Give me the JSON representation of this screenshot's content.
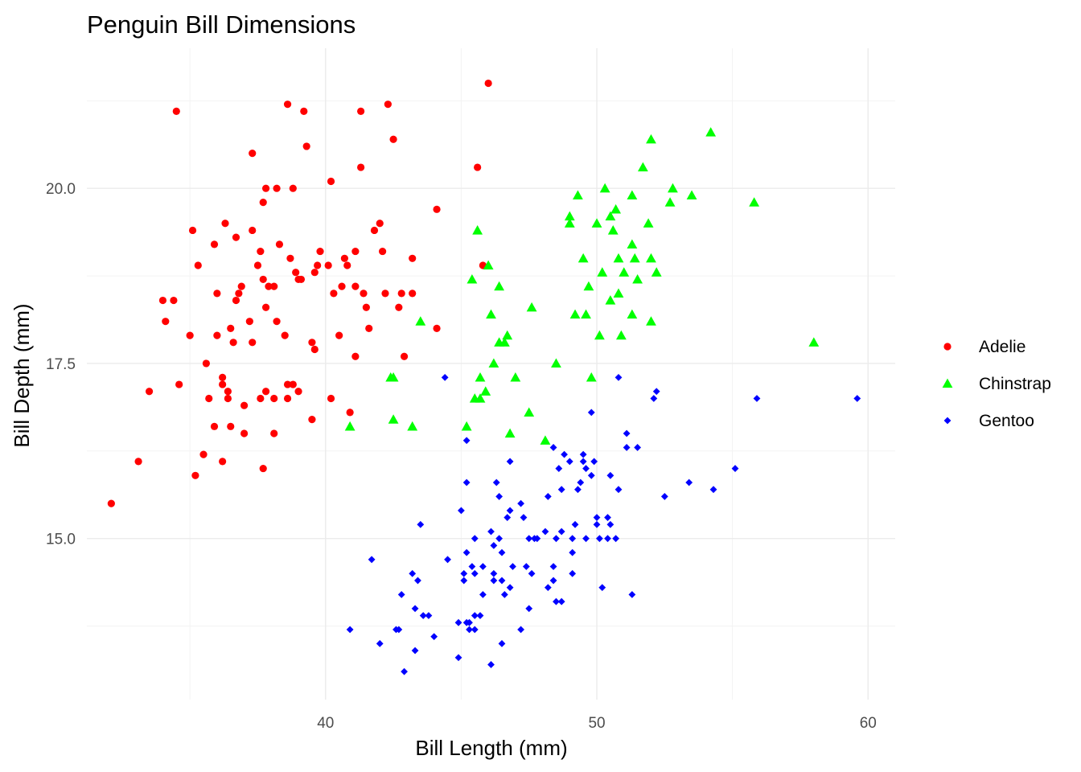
{
  "chart_data": {
    "type": "scatter",
    "title": "Penguin Bill Dimensions",
    "xlabel": "Bill Length (mm)",
    "ylabel": "Bill Depth (mm)",
    "xlim": [
      31.2,
      61.0
    ],
    "ylim": [
      12.7,
      22.0
    ],
    "xticks": [
      40,
      50,
      60
    ],
    "xtick_labels": [
      "40",
      "50",
      "60"
    ],
    "yticks": [
      15.0,
      17.5,
      20.0
    ],
    "ytick_labels": [
      "15.0",
      "17.5",
      "20.0"
    ],
    "grid": true,
    "legend_position": "right",
    "series": [
      {
        "name": "Adelie",
        "color": "#ff0000",
        "marker": "circle",
        "points": [
          [
            32.1,
            15.5
          ],
          [
            33.1,
            16.1
          ],
          [
            33.5,
            17.1
          ],
          [
            34.0,
            18.4
          ],
          [
            34.1,
            18.1
          ],
          [
            34.4,
            18.4
          ],
          [
            34.5,
            21.1
          ],
          [
            34.6,
            17.2
          ],
          [
            35.0,
            17.9
          ],
          [
            35.1,
            19.4
          ],
          [
            35.2,
            15.9
          ],
          [
            35.3,
            18.9
          ],
          [
            35.5,
            16.2
          ],
          [
            35.6,
            17.5
          ],
          [
            35.7,
            17.0
          ],
          [
            35.9,
            16.6
          ],
          [
            35.9,
            19.2
          ],
          [
            36.0,
            17.9
          ],
          [
            36.0,
            18.5
          ],
          [
            36.2,
            17.3
          ],
          [
            36.2,
            16.1
          ],
          [
            36.2,
            17.2
          ],
          [
            36.3,
            19.5
          ],
          [
            36.4,
            17.1
          ],
          [
            36.4,
            17.0
          ],
          [
            36.5,
            18.0
          ],
          [
            36.5,
            16.6
          ],
          [
            36.6,
            17.8
          ],
          [
            36.7,
            18.4
          ],
          [
            36.7,
            19.3
          ],
          [
            36.8,
            18.5
          ],
          [
            36.9,
            18.6
          ],
          [
            37.0,
            16.9
          ],
          [
            37.0,
            16.5
          ],
          [
            37.2,
            18.1
          ],
          [
            37.3,
            19.4
          ],
          [
            37.3,
            20.5
          ],
          [
            37.3,
            17.8
          ],
          [
            37.5,
            18.9
          ],
          [
            37.6,
            17.0
          ],
          [
            37.6,
            19.1
          ],
          [
            37.7,
            16.0
          ],
          [
            37.7,
            18.7
          ],
          [
            37.7,
            19.8
          ],
          [
            37.8,
            18.3
          ],
          [
            37.8,
            17.1
          ],
          [
            37.8,
            20.0
          ],
          [
            37.9,
            18.6
          ],
          [
            38.1,
            18.6
          ],
          [
            38.1,
            17.0
          ],
          [
            38.1,
            16.5
          ],
          [
            38.2,
            18.1
          ],
          [
            38.2,
            20.0
          ],
          [
            38.3,
            19.2
          ],
          [
            38.5,
            17.9
          ],
          [
            38.6,
            21.2
          ],
          [
            38.6,
            17.2
          ],
          [
            38.6,
            17.0
          ],
          [
            38.7,
            19.0
          ],
          [
            38.8,
            17.2
          ],
          [
            38.8,
            20.0
          ],
          [
            38.9,
            18.8
          ],
          [
            39.0,
            17.1
          ],
          [
            39.0,
            18.7
          ],
          [
            39.1,
            18.7
          ],
          [
            39.2,
            21.1
          ],
          [
            39.3,
            20.6
          ],
          [
            39.5,
            16.7
          ],
          [
            39.5,
            17.8
          ],
          [
            39.6,
            18.8
          ],
          [
            39.6,
            17.7
          ],
          [
            39.7,
            18.9
          ],
          [
            39.8,
            19.1
          ],
          [
            40.1,
            18.9
          ],
          [
            40.2,
            20.1
          ],
          [
            40.2,
            17.0
          ],
          [
            40.3,
            18.5
          ],
          [
            40.5,
            17.9
          ],
          [
            40.6,
            18.6
          ],
          [
            40.7,
            19.0
          ],
          [
            40.8,
            18.9
          ],
          [
            40.9,
            16.8
          ],
          [
            41.1,
            17.6
          ],
          [
            41.1,
            18.6
          ],
          [
            41.1,
            19.1
          ],
          [
            41.3,
            20.3
          ],
          [
            41.3,
            21.1
          ],
          [
            41.4,
            18.5
          ],
          [
            41.5,
            18.3
          ],
          [
            41.6,
            18.0
          ],
          [
            41.8,
            19.4
          ],
          [
            42.0,
            19.5
          ],
          [
            42.1,
            19.1
          ],
          [
            42.2,
            18.5
          ],
          [
            42.3,
            21.2
          ],
          [
            42.5,
            20.7
          ],
          [
            42.7,
            18.3
          ],
          [
            42.8,
            18.5
          ],
          [
            42.9,
            17.6
          ],
          [
            43.2,
            18.5
          ],
          [
            43.2,
            19.0
          ],
          [
            44.1,
            18.0
          ],
          [
            44.1,
            19.7
          ],
          [
            45.6,
            20.3
          ],
          [
            45.8,
            18.9
          ],
          [
            46.0,
            21.5
          ]
        ]
      },
      {
        "name": "Chinstrap",
        "color": "#00ff00",
        "marker": "triangle",
        "points": [
          [
            40.9,
            16.6
          ],
          [
            42.4,
            17.3
          ],
          [
            42.5,
            16.7
          ],
          [
            42.5,
            17.3
          ],
          [
            43.2,
            16.6
          ],
          [
            43.5,
            18.1
          ],
          [
            45.2,
            16.6
          ],
          [
            45.4,
            18.7
          ],
          [
            45.5,
            17.0
          ],
          [
            45.6,
            19.4
          ],
          [
            45.7,
            17.3
          ],
          [
            45.7,
            17.0
          ],
          [
            45.9,
            17.1
          ],
          [
            46.0,
            18.9
          ],
          [
            46.1,
            18.2
          ],
          [
            46.2,
            17.5
          ],
          [
            46.4,
            18.6
          ],
          [
            46.4,
            17.8
          ],
          [
            46.6,
            17.8
          ],
          [
            46.7,
            17.9
          ],
          [
            46.8,
            16.5
          ],
          [
            47.0,
            17.3
          ],
          [
            47.5,
            16.8
          ],
          [
            47.6,
            18.3
          ],
          [
            48.1,
            16.4
          ],
          [
            48.5,
            17.5
          ],
          [
            49.0,
            19.5
          ],
          [
            49.0,
            19.6
          ],
          [
            49.2,
            18.2
          ],
          [
            49.3,
            19.9
          ],
          [
            49.5,
            19.0
          ],
          [
            49.6,
            18.2
          ],
          [
            49.7,
            18.6
          ],
          [
            49.8,
            17.3
          ],
          [
            50.0,
            19.5
          ],
          [
            50.1,
            17.9
          ],
          [
            50.2,
            18.8
          ],
          [
            50.3,
            20.0
          ],
          [
            50.5,
            18.4
          ],
          [
            50.5,
            19.6
          ],
          [
            50.6,
            19.4
          ],
          [
            50.7,
            19.7
          ],
          [
            50.8,
            18.5
          ],
          [
            50.8,
            19.0
          ],
          [
            50.9,
            17.9
          ],
          [
            51.0,
            18.8
          ],
          [
            51.3,
            18.2
          ],
          [
            51.3,
            19.2
          ],
          [
            51.3,
            19.9
          ],
          [
            51.4,
            19.0
          ],
          [
            51.5,
            18.7
          ],
          [
            51.7,
            20.3
          ],
          [
            51.9,
            19.5
          ],
          [
            52.0,
            18.1
          ],
          [
            52.0,
            19.0
          ],
          [
            52.0,
            20.7
          ],
          [
            52.2,
            18.8
          ],
          [
            52.7,
            19.8
          ],
          [
            52.8,
            20.0
          ],
          [
            53.5,
            19.9
          ],
          [
            54.2,
            20.8
          ],
          [
            55.8,
            19.8
          ],
          [
            58.0,
            17.8
          ]
        ]
      },
      {
        "name": "Gentoo",
        "color": "#0000ff",
        "marker": "diamond",
        "points": [
          [
            40.9,
            13.7
          ],
          [
            41.7,
            14.7
          ],
          [
            42.0,
            13.5
          ],
          [
            42.6,
            13.7
          ],
          [
            42.7,
            13.7
          ],
          [
            42.8,
            14.2
          ],
          [
            42.9,
            13.1
          ],
          [
            43.2,
            14.5
          ],
          [
            43.3,
            13.4
          ],
          [
            43.3,
            14.0
          ],
          [
            43.4,
            14.4
          ],
          [
            43.5,
            15.2
          ],
          [
            43.6,
            13.9
          ],
          [
            43.8,
            13.9
          ],
          [
            44.0,
            13.6
          ],
          [
            44.4,
            17.3
          ],
          [
            44.5,
            14.7
          ],
          [
            44.9,
            13.3
          ],
          [
            44.9,
            13.8
          ],
          [
            45.0,
            15.4
          ],
          [
            45.1,
            14.5
          ],
          [
            45.1,
            14.4
          ],
          [
            45.2,
            13.8
          ],
          [
            45.2,
            14.8
          ],
          [
            45.2,
            15.8
          ],
          [
            45.2,
            16.4
          ],
          [
            45.3,
            13.7
          ],
          [
            45.3,
            13.8
          ],
          [
            45.4,
            14.6
          ],
          [
            45.5,
            13.7
          ],
          [
            45.5,
            13.9
          ],
          [
            45.5,
            15.0
          ],
          [
            45.5,
            14.5
          ],
          [
            45.7,
            13.9
          ],
          [
            45.8,
            14.2
          ],
          [
            45.8,
            14.6
          ],
          [
            46.1,
            13.2
          ],
          [
            46.1,
            15.1
          ],
          [
            46.2,
            14.4
          ],
          [
            46.2,
            14.5
          ],
          [
            46.2,
            14.9
          ],
          [
            46.3,
            15.8
          ],
          [
            46.4,
            15.0
          ],
          [
            46.4,
            15.6
          ],
          [
            46.5,
            14.4
          ],
          [
            46.5,
            14.8
          ],
          [
            46.5,
            13.5
          ],
          [
            46.6,
            14.2
          ],
          [
            46.7,
            15.3
          ],
          [
            46.8,
            14.3
          ],
          [
            46.8,
            15.4
          ],
          [
            46.8,
            16.1
          ],
          [
            46.9,
            14.6
          ],
          [
            47.2,
            13.7
          ],
          [
            47.2,
            15.5
          ],
          [
            47.3,
            15.3
          ],
          [
            47.4,
            14.6
          ],
          [
            47.5,
            14.0
          ],
          [
            47.5,
            15.0
          ],
          [
            47.6,
            14.5
          ],
          [
            47.7,
            15.0
          ],
          [
            47.8,
            15.0
          ],
          [
            48.1,
            15.1
          ],
          [
            48.2,
            14.3
          ],
          [
            48.2,
            15.6
          ],
          [
            48.4,
            14.4
          ],
          [
            48.4,
            14.6
          ],
          [
            48.4,
            16.3
          ],
          [
            48.5,
            14.1
          ],
          [
            48.5,
            15.0
          ],
          [
            48.6,
            16.0
          ],
          [
            48.7,
            14.1
          ],
          [
            48.7,
            15.1
          ],
          [
            48.7,
            15.7
          ],
          [
            48.8,
            16.2
          ],
          [
            49.0,
            16.1
          ],
          [
            49.1,
            14.5
          ],
          [
            49.1,
            14.8
          ],
          [
            49.1,
            15.0
          ],
          [
            49.2,
            15.2
          ],
          [
            49.3,
            15.7
          ],
          [
            49.4,
            15.8
          ],
          [
            49.5,
            16.1
          ],
          [
            49.5,
            16.2
          ],
          [
            49.6,
            15.0
          ],
          [
            49.6,
            16.0
          ],
          [
            49.8,
            15.9
          ],
          [
            49.8,
            16.8
          ],
          [
            49.9,
            16.1
          ],
          [
            50.0,
            15.2
          ],
          [
            50.0,
            15.3
          ],
          [
            50.1,
            15.0
          ],
          [
            50.2,
            14.3
          ],
          [
            50.4,
            15.0
          ],
          [
            50.4,
            15.3
          ],
          [
            50.5,
            15.2
          ],
          [
            50.5,
            15.9
          ],
          [
            50.7,
            15.0
          ],
          [
            50.8,
            15.7
          ],
          [
            50.8,
            17.3
          ],
          [
            51.1,
            16.3
          ],
          [
            51.1,
            16.5
          ],
          [
            51.3,
            14.2
          ],
          [
            51.5,
            16.3
          ],
          [
            52.1,
            17.0
          ],
          [
            52.2,
            17.1
          ],
          [
            52.5,
            15.6
          ],
          [
            53.4,
            15.8
          ],
          [
            54.3,
            15.7
          ],
          [
            55.1,
            16.0
          ],
          [
            55.9,
            17.0
          ],
          [
            59.6,
            17.0
          ]
        ]
      }
    ]
  }
}
